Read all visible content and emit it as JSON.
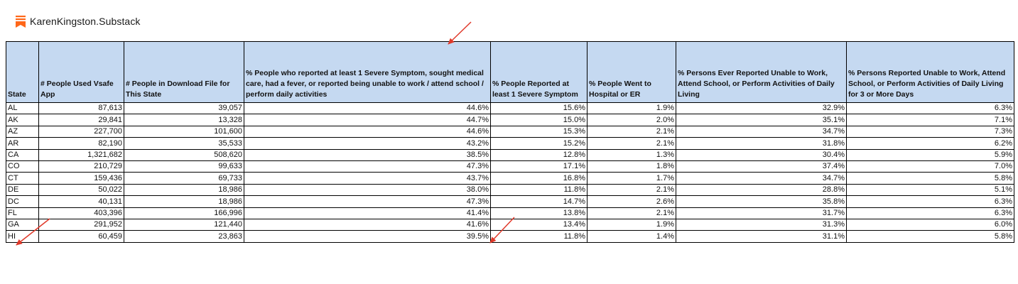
{
  "brand": {
    "name": "KarenKingston.Substack",
    "logo_icon": "substack-logo-icon",
    "logo_color": "#ff6719"
  },
  "chart_data": {
    "type": "table",
    "headers": [
      "State",
      "# People Used Vsafe App",
      "# People in Download File for This State",
      "% People who reported at least 1 Severe Symptom, sought medical care, had a fever, or reported being unable to work / attend school / perform daily activities",
      "% People Reported at least 1 Severe Symptom",
      "% People Went to Hospital or ER",
      "% Persons Ever Reported Unable to Work, Attend School, or Perform Activities of Daily Living",
      "% Persons Reported Unable to Work, Attend School, or Perform Activities of Daily Living for 3 or More Days"
    ],
    "rows": [
      [
        "AL",
        "87,613",
        "39,057",
        "44.6%",
        "15.6%",
        "1.9%",
        "32.9%",
        "6.3%"
      ],
      [
        "AK",
        "29,841",
        "13,328",
        "44.7%",
        "15.0%",
        "2.0%",
        "35.1%",
        "7.1%"
      ],
      [
        "AZ",
        "227,700",
        "101,600",
        "44.6%",
        "15.3%",
        "2.1%",
        "34.7%",
        "7.3%"
      ],
      [
        "AR",
        "82,190",
        "35,533",
        "43.2%",
        "15.2%",
        "2.1%",
        "31.8%",
        "6.2%"
      ],
      [
        "CA",
        "1,321,682",
        "508,620",
        "38.5%",
        "12.8%",
        "1.3%",
        "30.4%",
        "5.9%"
      ],
      [
        "CO",
        "210,729",
        "99,633",
        "47.3%",
        "17.1%",
        "1.8%",
        "37.4%",
        "7.0%"
      ],
      [
        "CT",
        "159,436",
        "69,733",
        "43.7%",
        "16.8%",
        "1.7%",
        "34.7%",
        "5.8%"
      ],
      [
        "DE",
        "50,022",
        "18,986",
        "38.0%",
        "11.8%",
        "2.1%",
        "28.8%",
        "5.1%"
      ],
      [
        "DC",
        "40,131",
        "18,986",
        "47.3%",
        "14.7%",
        "2.6%",
        "35.8%",
        "6.3%"
      ],
      [
        "FL",
        "403,396",
        "166,996",
        "41.4%",
        "13.8%",
        "2.1%",
        "31.7%",
        "6.3%"
      ],
      [
        "GA",
        "291,952",
        "121,440",
        "41.6%",
        "13.4%",
        "1.9%",
        "31.3%",
        "6.0%"
      ],
      [
        "HI",
        "60,459",
        "23,863",
        "39.5%",
        "11.8%",
        "1.4%",
        "31.1%",
        "5.8%"
      ]
    ],
    "header_fill": "#c5d9f1",
    "annotation_color": "#e0392a"
  }
}
